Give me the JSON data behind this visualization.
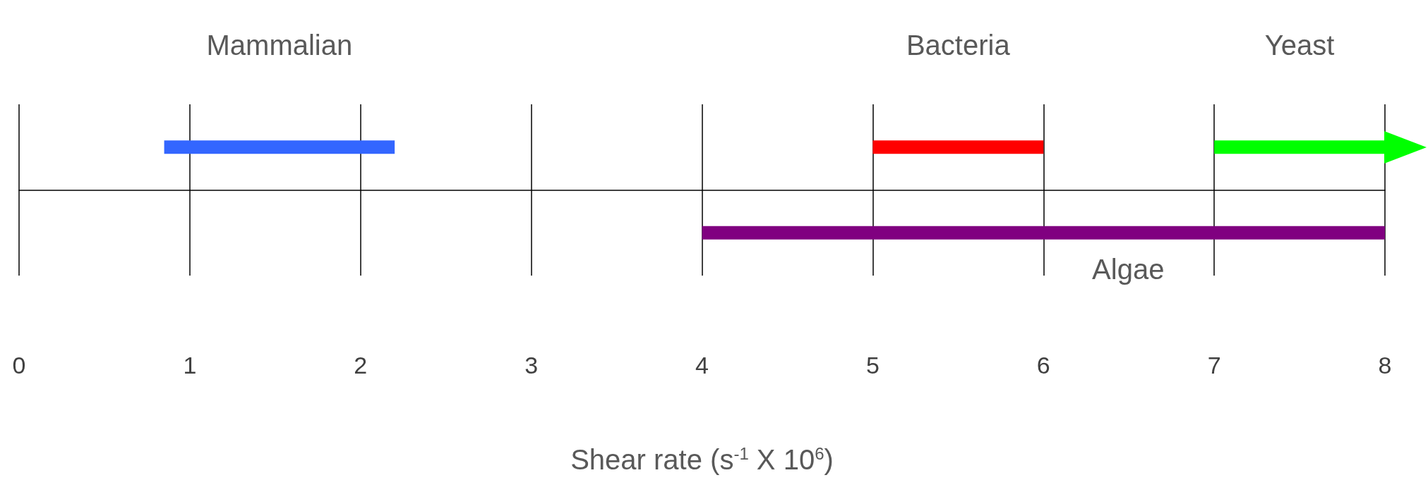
{
  "chart_data": {
    "type": "bar",
    "orientation": "horizontal",
    "xlabel": "Shear rate (s$^{-1}$ X 10$^{6}$)",
    "categories": [
      null,
      null
    ],
    "series": [
      {
        "name": "Mammalian",
        "color": "#3366ff",
        "values": [
          1.35,
          null
        ],
        "base": [
          0.85,
          null
        ]
      },
      {
        "name": "Bacteria",
        "color": "#ff0000",
        "values": [
          1.0,
          null
        ],
        "base": [
          5.0,
          null
        ]
      },
      {
        "name": "Yeast",
        "color": "#00ff00",
        "values": [
          1.0,
          null
        ],
        "base": [
          7.0,
          null
        ]
      },
      {
        "name": "Algae",
        "color": "#800080",
        "values": [
          null,
          4.0
        ],
        "base": [
          null,
          4.0
        ]
      }
    ],
    "xlim": [
      0,
      8
    ],
    "xticks": [
      0,
      1,
      2,
      3,
      4,
      5,
      6,
      7,
      8
    ],
    "grid": "x",
    "legend": false
  }
}
